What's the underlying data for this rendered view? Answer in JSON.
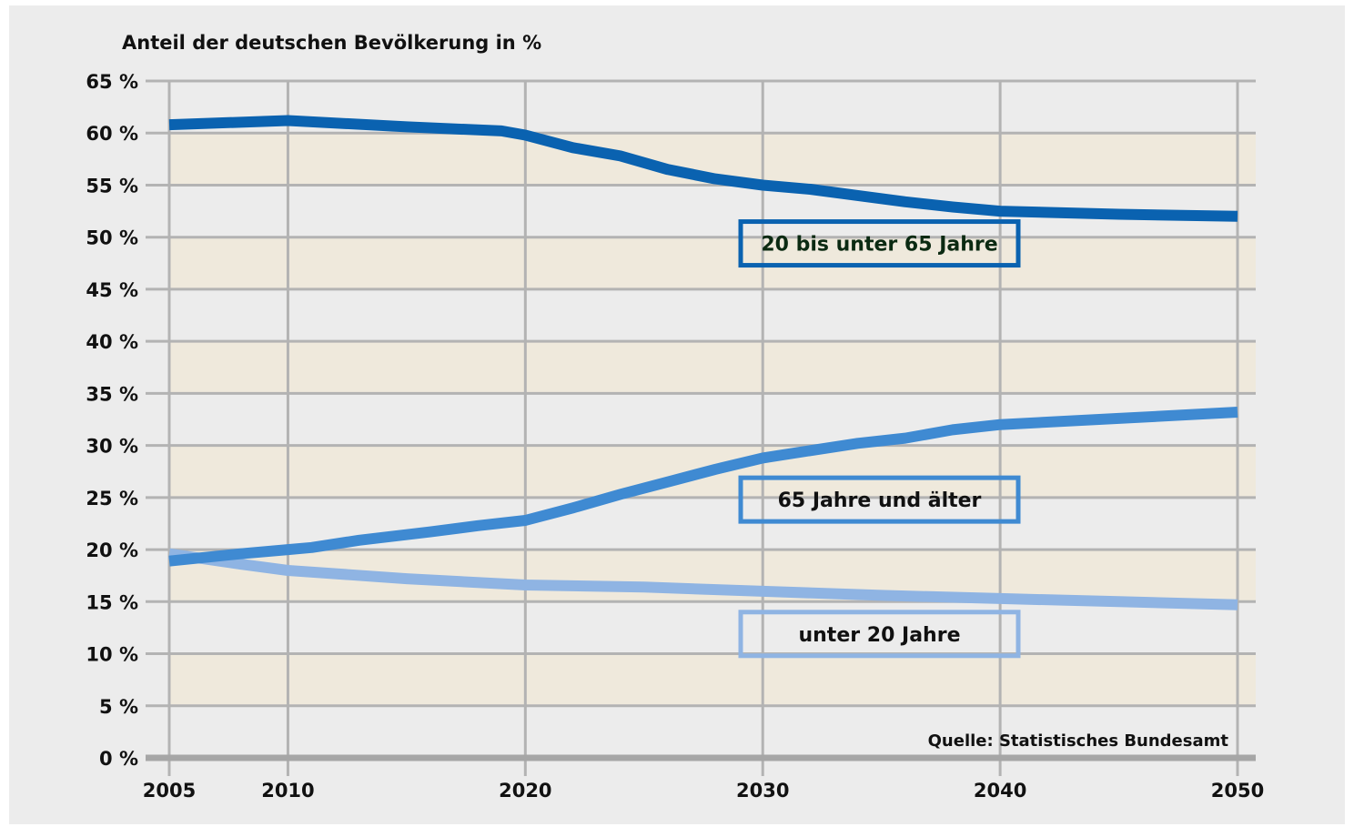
{
  "chart_data": {
    "type": "line",
    "title": "",
    "ylabel": "Anteil der deutschen Bevölkerung in %",
    "xlabel": "",
    "source": "Quelle: Statistisches Bundesamt",
    "x_ticks": [
      2005,
      2010,
      2020,
      2030,
      2040,
      2050
    ],
    "x_tick_labels": [
      "2005",
      "2010",
      "2020",
      "2030",
      "2040",
      "2050"
    ],
    "xlim": [
      2005,
      2050
    ],
    "ylim": [
      0,
      65
    ],
    "y_ticks": [
      0,
      5,
      10,
      15,
      20,
      25,
      30,
      35,
      40,
      45,
      50,
      55,
      60,
      65
    ],
    "y_tick_labels": [
      "0 %",
      "5 %",
      "10 %",
      "15 %",
      "20 %",
      "25 %",
      "30 %",
      "35 %",
      "40 %",
      "45 %",
      "50 %",
      "55 %",
      "60 %",
      "65 %"
    ],
    "grid": true,
    "series": [
      {
        "name": "20 bis unter 65 Jahre",
        "color": "#0a62b0",
        "x": [
          2005,
          2010,
          2015,
          2019,
          2020,
          2022,
          2024,
          2026,
          2028,
          2030,
          2032,
          2034,
          2036,
          2038,
          2040,
          2045,
          2050
        ],
        "values": [
          60.8,
          61.2,
          60.6,
          60.2,
          59.8,
          58.6,
          57.8,
          56.5,
          55.6,
          55.0,
          54.6,
          54.0,
          53.4,
          52.9,
          52.5,
          52.2,
          52.0
        ]
      },
      {
        "name": "65 Jahre und älter",
        "color": "#3f8ad2",
        "x": [
          2005,
          2008,
          2010,
          2011,
          2013,
          2016,
          2018,
          2020,
          2022,
          2024,
          2026,
          2028,
          2030,
          2032,
          2034,
          2036,
          2038,
          2040,
          2045,
          2050
        ],
        "values": [
          18.9,
          19.6,
          20.0,
          20.2,
          20.9,
          21.7,
          22.3,
          22.8,
          24.0,
          25.3,
          26.5,
          27.7,
          28.8,
          29.5,
          30.2,
          30.7,
          31.5,
          32.0,
          32.6,
          33.2
        ]
      },
      {
        "name": "unter 20 Jahre",
        "color": "#8fb4e3",
        "x": [
          2005,
          2008,
          2010,
          2015,
          2020,
          2025,
          2030,
          2035,
          2040,
          2045,
          2050
        ],
        "values": [
          19.6,
          18.6,
          18.0,
          17.2,
          16.6,
          16.4,
          16.0,
          15.6,
          15.3,
          15.0,
          14.7
        ]
      }
    ]
  }
}
